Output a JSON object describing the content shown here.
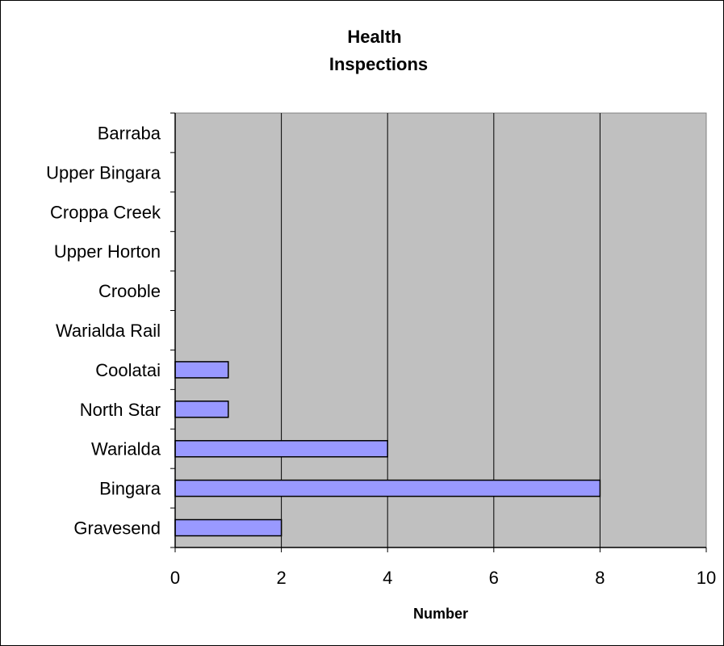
{
  "chart_data": {
    "type": "bar",
    "orientation": "horizontal",
    "title_lines": [
      "Health",
      "Inspections"
    ],
    "xlabel": "Number",
    "ylabel": "",
    "categories": [
      "Gravesend",
      "Bingara",
      "Warialda",
      "North Star",
      "Coolatai",
      "Warialda Rail",
      "Crooble",
      "Upper Horton",
      "Croppa Creek",
      "Upper Bingara",
      "Barraba"
    ],
    "values": [
      2,
      8,
      4,
      1,
      1,
      0,
      0,
      0,
      0,
      0,
      0
    ],
    "xlim": [
      0,
      10
    ],
    "xticks": [
      0,
      2,
      4,
      6,
      8,
      10
    ],
    "grid": "vertical",
    "legend": "none",
    "colors": {
      "bar_fill": "#9999ff",
      "plot_background": "#c0c0c0",
      "gridline": "#000000"
    }
  }
}
